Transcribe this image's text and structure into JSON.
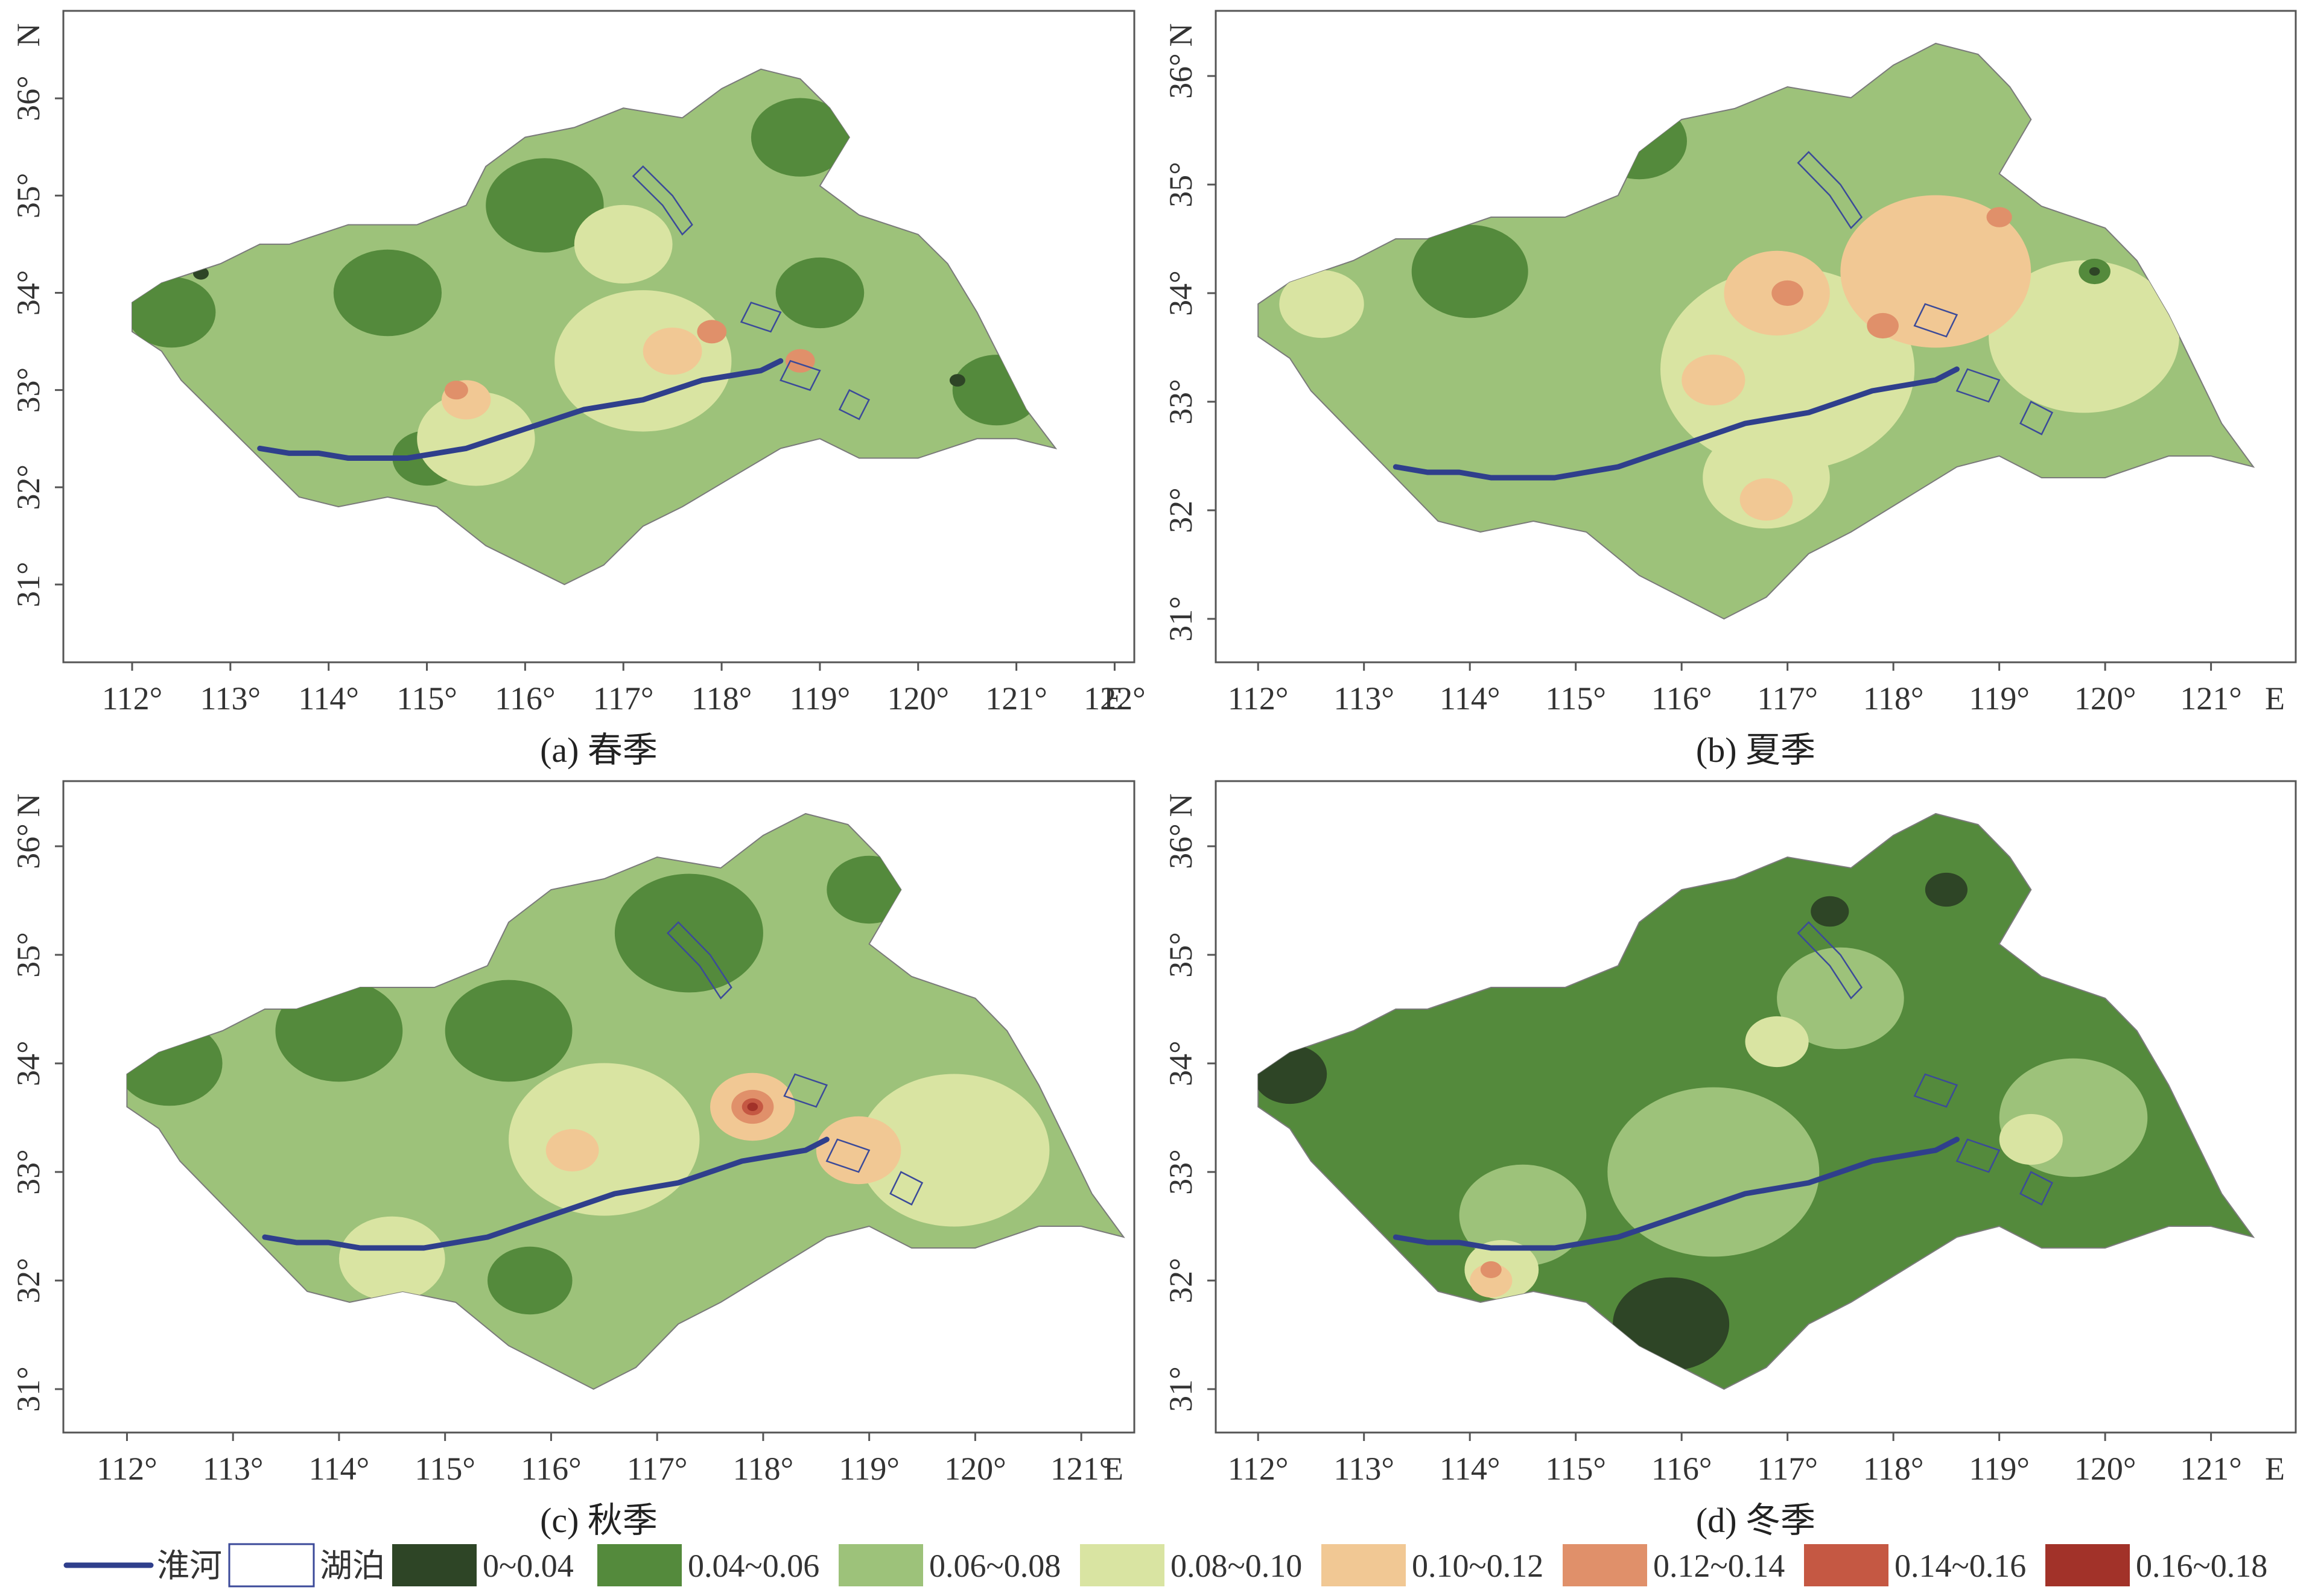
{
  "panels": [
    {
      "id": "a",
      "caption": "(a) 春季",
      "x_ticks": [
        "112°",
        "113°",
        "114°",
        "115°",
        "116°",
        "117°",
        "118°",
        "119°",
        "120°",
        "121°",
        "122°"
      ],
      "y_ticks": [
        "36°",
        "35°",
        "34°",
        "33°",
        "32°",
        "31°"
      ],
      "x_unit": "E",
      "y_unit": "N",
      "base_class": "0.06~0.08",
      "patches": [
        {
          "cls": "0.04~0.06",
          "lon": 112.4,
          "lat": 33.8,
          "r": 0.45
        },
        {
          "cls": "0.04~0.06",
          "lon": 114.6,
          "lat": 34.0,
          "r": 0.55
        },
        {
          "cls": "0.04~0.06",
          "lon": 116.2,
          "lat": 34.9,
          "r": 0.6
        },
        {
          "cls": "0.04~0.06",
          "lon": 118.8,
          "lat": 35.6,
          "r": 0.5
        },
        {
          "cls": "0.04~0.06",
          "lon": 119.0,
          "lat": 34.0,
          "r": 0.45
        },
        {
          "cls": "0.04~0.06",
          "lon": 120.8,
          "lat": 33.0,
          "r": 0.45
        },
        {
          "cls": "0.04~0.06",
          "lon": 115.0,
          "lat": 32.3,
          "r": 0.35
        },
        {
          "cls": "0.08~0.10",
          "lon": 117.2,
          "lat": 33.3,
          "r": 0.9
        },
        {
          "cls": "0.08~0.10",
          "lon": 117.0,
          "lat": 34.5,
          "r": 0.5
        },
        {
          "cls": "0.08~0.10",
          "lon": 115.5,
          "lat": 32.5,
          "r": 0.6
        },
        {
          "cls": "0.10~0.12",
          "lon": 117.5,
          "lat": 33.4,
          "r": 0.3
        },
        {
          "cls": "0.10~0.12",
          "lon": 115.4,
          "lat": 32.9,
          "r": 0.25
        },
        {
          "cls": "0.12~0.14",
          "lon": 117.9,
          "lat": 33.6,
          "r": 0.15
        },
        {
          "cls": "0.12~0.14",
          "lon": 118.8,
          "lat": 33.3,
          "r": 0.15
        },
        {
          "cls": "0.12~0.14",
          "lon": 115.3,
          "lat": 33.0,
          "r": 0.12
        },
        {
          "cls": "0~0.04",
          "lon": 112.7,
          "lat": 34.2,
          "r": 0.08
        },
        {
          "cls": "0~0.04",
          "lon": 120.4,
          "lat": 33.1,
          "r": 0.08
        }
      ]
    },
    {
      "id": "b",
      "caption": "(b) 夏季",
      "x_ticks": [
        "112°",
        "113°",
        "114°",
        "115°",
        "116°",
        "117°",
        "118°",
        "119°",
        "120°",
        "121°"
      ],
      "y_ticks": [
        "36°",
        "35°",
        "34°",
        "33°",
        "32°",
        "31°"
      ],
      "x_unit": "E",
      "y_unit": "N",
      "base_class": "0.06~0.08",
      "patches": [
        {
          "cls": "0.08~0.10",
          "lon": 117.0,
          "lat": 33.3,
          "r": 1.2
        },
        {
          "cls": "0.08~0.10",
          "lon": 119.8,
          "lat": 33.6,
          "r": 0.9
        },
        {
          "cls": "0.08~0.10",
          "lon": 116.8,
          "lat": 32.3,
          "r": 0.6
        },
        {
          "cls": "0.08~0.10",
          "lon": 112.6,
          "lat": 33.9,
          "r": 0.4
        },
        {
          "cls": "0.10~0.12",
          "lon": 118.4,
          "lat": 34.2,
          "r": 0.9
        },
        {
          "cls": "0.10~0.12",
          "lon": 116.9,
          "lat": 34.0,
          "r": 0.5
        },
        {
          "cls": "0.10~0.12",
          "lon": 116.3,
          "lat": 33.2,
          "r": 0.3
        },
        {
          "cls": "0.10~0.12",
          "lon": 116.8,
          "lat": 32.1,
          "r": 0.25
        },
        {
          "cls": "0.12~0.14",
          "lon": 117.0,
          "lat": 34.0,
          "r": 0.15
        },
        {
          "cls": "0.12~0.14",
          "lon": 117.9,
          "lat": 33.7,
          "r": 0.15
        },
        {
          "cls": "0.12~0.14",
          "lon": 119.0,
          "lat": 34.7,
          "r": 0.12
        },
        {
          "cls": "0.04~0.06",
          "lon": 114.0,
          "lat": 34.2,
          "r": 0.55
        },
        {
          "cls": "0.04~0.06",
          "lon": 115.6,
          "lat": 35.4,
          "r": 0.45
        },
        {
          "cls": "0.04~0.06",
          "lon": 119.9,
          "lat": 34.2,
          "r": 0.15
        },
        {
          "cls": "0~0.04",
          "lon": 119.9,
          "lat": 34.2,
          "r": 0.05
        }
      ]
    },
    {
      "id": "c",
      "caption": "(c) 秋季",
      "x_ticks": [
        "112°",
        "113°",
        "114°",
        "115°",
        "116°",
        "117°",
        "118°",
        "119°",
        "120°",
        "121°"
      ],
      "y_ticks": [
        "36°",
        "35°",
        "34°",
        "33°",
        "32°",
        "31°"
      ],
      "x_unit": "E",
      "y_unit": "N",
      "base_class": "0.06~0.08",
      "patches": [
        {
          "cls": "0.04~0.06",
          "lon": 112.4,
          "lat": 34.0,
          "r": 0.5
        },
        {
          "cls": "0.04~0.06",
          "lon": 114.0,
          "lat": 34.3,
          "r": 0.6
        },
        {
          "cls": "0.04~0.06",
          "lon": 115.6,
          "lat": 34.3,
          "r": 0.6
        },
        {
          "cls": "0.04~0.06",
          "lon": 117.3,
          "lat": 35.2,
          "r": 0.7
        },
        {
          "cls": "0.04~0.06",
          "lon": 119.0,
          "lat": 35.6,
          "r": 0.4
        },
        {
          "cls": "0.04~0.06",
          "lon": 115.8,
          "lat": 32.0,
          "r": 0.4
        },
        {
          "cls": "0.08~0.10",
          "lon": 116.5,
          "lat": 33.3,
          "r": 0.9
        },
        {
          "cls": "0.08~0.10",
          "lon": 119.8,
          "lat": 33.2,
          "r": 0.9
        },
        {
          "cls": "0.08~0.10",
          "lon": 114.5,
          "lat": 32.2,
          "r": 0.5
        },
        {
          "cls": "0.10~0.12",
          "lon": 117.9,
          "lat": 33.6,
          "r": 0.4
        },
        {
          "cls": "0.10~0.12",
          "lon": 118.9,
          "lat": 33.2,
          "r": 0.4
        },
        {
          "cls": "0.10~0.12",
          "lon": 116.2,
          "lat": 33.2,
          "r": 0.25
        },
        {
          "cls": "0.12~0.14",
          "lon": 117.9,
          "lat": 33.6,
          "r": 0.2
        },
        {
          "cls": "0.14~0.16",
          "lon": 117.9,
          "lat": 33.6,
          "r": 0.1
        },
        {
          "cls": "0.16~0.18",
          "lon": 117.9,
          "lat": 33.6,
          "r": 0.05
        }
      ]
    },
    {
      "id": "d",
      "caption": "(d) 冬季",
      "x_ticks": [
        "112°",
        "113°",
        "114°",
        "115°",
        "116°",
        "117°",
        "118°",
        "119°",
        "120°",
        "121°"
      ],
      "y_ticks": [
        "36°",
        "35°",
        "34°",
        "33°",
        "32°",
        "31°"
      ],
      "x_unit": "E",
      "y_unit": "N",
      "base_class": "0.04~0.06",
      "patches": [
        {
          "cls": "0.06~0.08",
          "lon": 116.3,
          "lat": 33.0,
          "r": 1.0
        },
        {
          "cls": "0.06~0.08",
          "lon": 119.7,
          "lat": 33.5,
          "r": 0.7
        },
        {
          "cls": "0.06~0.08",
          "lon": 114.5,
          "lat": 32.6,
          "r": 0.6
        },
        {
          "cls": "0.06~0.08",
          "lon": 117.5,
          "lat": 34.6,
          "r": 0.6
        },
        {
          "cls": "0.08~0.10",
          "lon": 116.9,
          "lat": 34.2,
          "r": 0.3
        },
        {
          "cls": "0.08~0.10",
          "lon": 114.3,
          "lat": 32.1,
          "r": 0.35
        },
        {
          "cls": "0.08~0.10",
          "lon": 119.3,
          "lat": 33.3,
          "r": 0.3
        },
        {
          "cls": "0.10~0.12",
          "lon": 114.2,
          "lat": 32.0,
          "r": 0.2
        },
        {
          "cls": "0.12~0.14",
          "lon": 114.2,
          "lat": 32.1,
          "r": 0.1
        },
        {
          "cls": "0~0.04",
          "lon": 115.9,
          "lat": 31.6,
          "r": 0.55
        },
        {
          "cls": "0~0.04",
          "lon": 112.3,
          "lat": 33.9,
          "r": 0.35
        },
        {
          "cls": "0~0.04",
          "lon": 118.5,
          "lat": 35.6,
          "r": 0.2
        },
        {
          "cls": "0~0.04",
          "lon": 117.4,
          "lat": 35.4,
          "r": 0.18
        }
      ]
    }
  ],
  "legend": {
    "river_label": "淮河",
    "lake_label": "湖泊",
    "classes": [
      {
        "label": "0~0.04",
        "color": "#2e4526"
      },
      {
        "label": "0.04~0.06",
        "color": "#548a3c"
      },
      {
        "label": "0.06~0.08",
        "color": "#9dc27a"
      },
      {
        "label": "0.08~0.10",
        "color": "#d9e4a2"
      },
      {
        "label": "0.10~0.12",
        "color": "#f1c894"
      },
      {
        "label": "0.12~0.14",
        "color": "#e0906a"
      },
      {
        "label": "0.14~0.16",
        "color": "#c55843"
      },
      {
        "label": "0.16~0.18",
        "color": "#a23229"
      }
    ]
  }
}
